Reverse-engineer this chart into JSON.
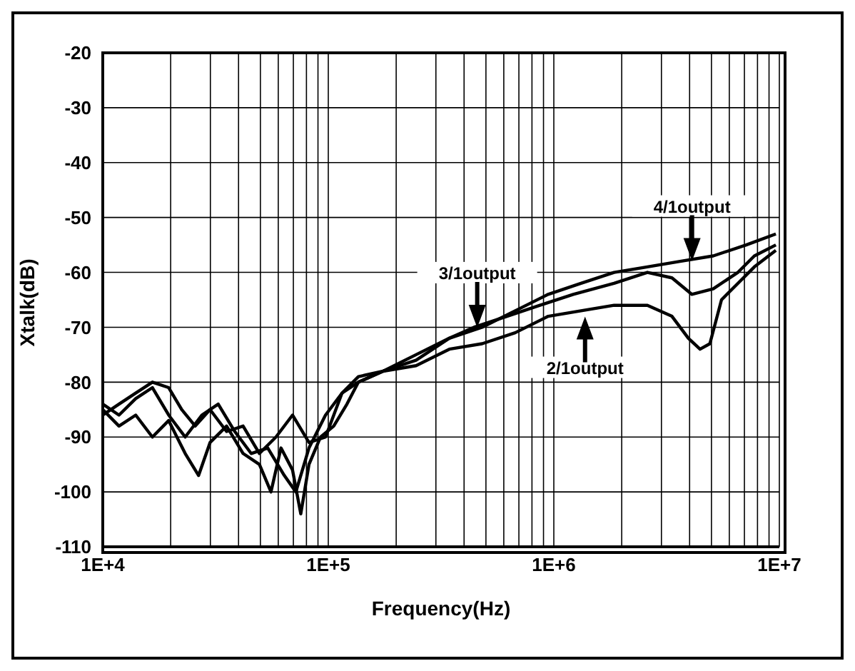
{
  "chart_data": {
    "type": "line",
    "xlabel": "Frequency(Hz)",
    "ylabel": "Xtalk(dB)",
    "log": "x",
    "grid": true,
    "xlim": [
      10000,
      10000000
    ],
    "ylim": [
      -110,
      -20
    ],
    "xticks": [
      {
        "value": 10000,
        "label": "1E+4"
      },
      {
        "value": 20000,
        "label": null
      },
      {
        "value": 30000,
        "label": null
      },
      {
        "value": 40000,
        "label": null
      },
      {
        "value": 50000,
        "label": null
      },
      {
        "value": 60000,
        "label": null
      },
      {
        "value": 70000,
        "label": null
      },
      {
        "value": 80000,
        "label": null
      },
      {
        "value": 90000,
        "label": null
      },
      {
        "value": 100000,
        "label": "1E+5"
      },
      {
        "value": 200000,
        "label": null
      },
      {
        "value": 300000,
        "label": null
      },
      {
        "value": 400000,
        "label": null
      },
      {
        "value": 500000,
        "label": null
      },
      {
        "value": 600000,
        "label": null
      },
      {
        "value": 700000,
        "label": null
      },
      {
        "value": 800000,
        "label": null
      },
      {
        "value": 900000,
        "label": null
      },
      {
        "value": 1000000,
        "label": "1E+6"
      },
      {
        "value": 2000000,
        "label": null
      },
      {
        "value": 3000000,
        "label": null
      },
      {
        "value": 4000000,
        "label": null
      },
      {
        "value": 5000000,
        "label": null
      },
      {
        "value": 6000000,
        "label": null
      },
      {
        "value": 7000000,
        "label": null
      },
      {
        "value": 8000000,
        "label": null
      },
      {
        "value": 9000000,
        "label": null
      },
      {
        "value": 10000000,
        "label": "1E+7"
      }
    ],
    "yticks": [
      -110,
      -100,
      -90,
      -80,
      -70,
      -60,
      -50,
      -40,
      -30,
      -20
    ],
    "series": [
      {
        "color": "#000000",
        "x": [
          10000,
          11800,
          14000,
          16600,
          19600,
          23200,
          26600,
          29900,
          35400,
          41900,
          49500,
          55700,
          61700,
          69400,
          75500,
          82100,
          92400,
          105700,
          121000,
          136000,
          175000,
          245000,
          344000,
          481000,
          674000,
          944000,
          1320000,
          1850000,
          2600000,
          3340000,
          3950000,
          4450000,
          4920000,
          5540000,
          6550000,
          7750000,
          9650000
        ],
        "values": [
          -85,
          -88,
          -86,
          -90,
          -87,
          -93,
          -97,
          -91,
          -88,
          -93,
          -95,
          -100,
          -92,
          -96,
          -104,
          -95,
          -90,
          -88,
          -84,
          -80,
          -78,
          -77,
          -74,
          -73,
          -71,
          -68,
          -67,
          -66,
          -66,
          -68,
          -72,
          -74,
          -73,
          -65,
          -62,
          -59,
          -56
        ]
      },
      {
        "color": "#000000",
        "x": [
          10000,
          11800,
          14000,
          16600,
          19600,
          23200,
          27500,
          32500,
          38500,
          45500,
          53900,
          63800,
          71800,
          82100,
          97200,
          115000,
          136000,
          175000,
          245000,
          344000,
          443000,
          620000,
          868000,
          1220000,
          1850000,
          2600000,
          3340000,
          4090000,
          5090000,
          6550000,
          7750000,
          9650000
        ],
        "values": [
          -84,
          -86,
          -83,
          -81,
          -86,
          -90,
          -86,
          -84,
          -89,
          -93,
          -92,
          -97,
          -100,
          -92,
          -86,
          -82,
          -79,
          -78,
          -75,
          -72,
          -70,
          -68,
          -66,
          -64,
          -62,
          -60,
          -61,
          -64,
          -63,
          -60,
          -57,
          -55
        ]
      },
      {
        "color": "#000000",
        "x": [
          10000,
          11800,
          14000,
          16600,
          19600,
          22400,
          25700,
          29900,
          35400,
          41900,
          49500,
          58600,
          69400,
          82100,
          97200,
          115000,
          136000,
          175000,
          245000,
          344000,
          481000,
          674000,
          944000,
          1320000,
          1850000,
          2600000,
          3630000,
          5090000,
          7130000,
          9650000
        ],
        "values": [
          -86,
          -84,
          -82,
          -80,
          -81,
          -85,
          -88,
          -85,
          -89,
          -88,
          -93,
          -90,
          -86,
          -91,
          -90,
          -82,
          -80,
          -78,
          -76,
          -72,
          -70,
          -67,
          -64,
          -62,
          -60,
          -59,
          -58,
          -57,
          -55,
          -53
        ]
      }
    ],
    "annotations": [
      {
        "text": "3/1output",
        "x": 443000,
        "y": -70
      },
      {
        "text": "4/1output",
        "x": 3900000,
        "y": -58
      },
      {
        "text": "2/1output",
        "x": 1320000,
        "y": -67
      }
    ]
  }
}
